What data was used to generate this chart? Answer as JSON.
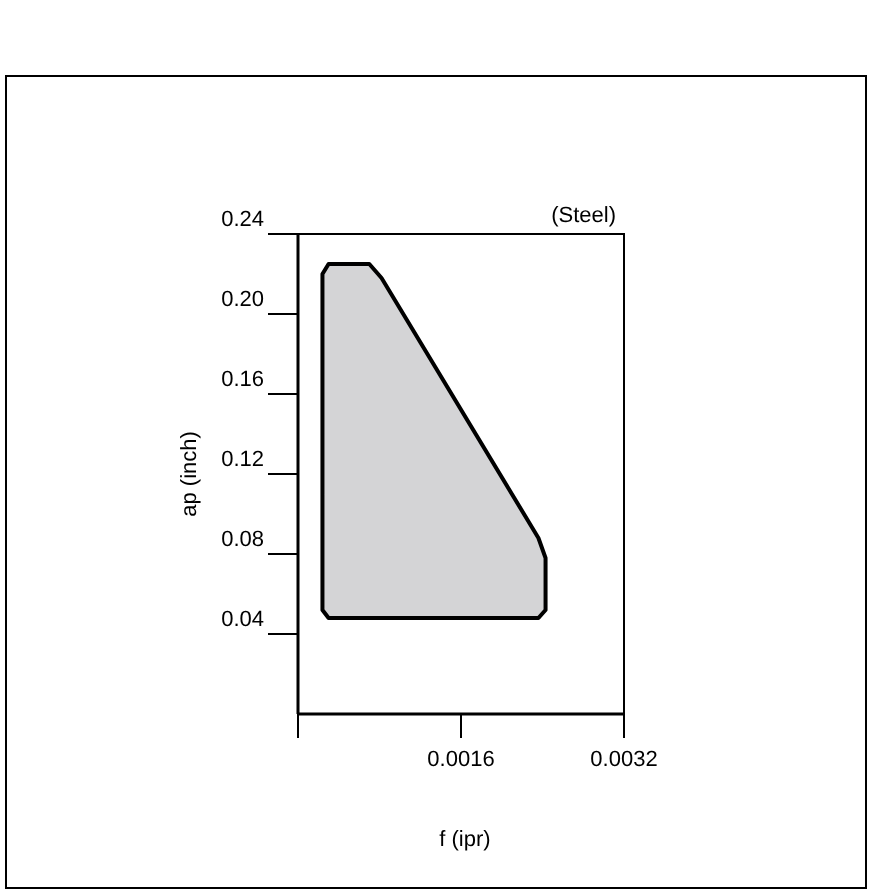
{
  "chart_data": {
    "type": "area",
    "xlabel": "f (ipr)",
    "ylabel": "ap (inch)",
    "annotations": [
      "(Steel)"
    ],
    "xlim": [
      0,
      0.0032
    ],
    "xticks": [
      {
        "value": 0,
        "label": null
      },
      0.0016,
      0.0032
    ],
    "ylim": [
      0,
      0.24
    ],
    "yticks": [
      0.04,
      0.08,
      0.12,
      0.16,
      {
        "value": 0.2,
        "label": "0.20"
      },
      0.24
    ],
    "series": [
      {
        "color": "#d4d4d6",
        "x": [
          0.00024,
          0.00024,
          0.0003,
          0.0007,
          0.00082,
          0.00236,
          0.00243,
          0.00243,
          0.00236,
          0.0003
        ],
        "values": [
          0.052,
          0.22,
          0.225,
          0.225,
          0.218,
          0.088,
          0.078,
          0.052,
          0.048,
          0.048
        ]
      }
    ]
  }
}
